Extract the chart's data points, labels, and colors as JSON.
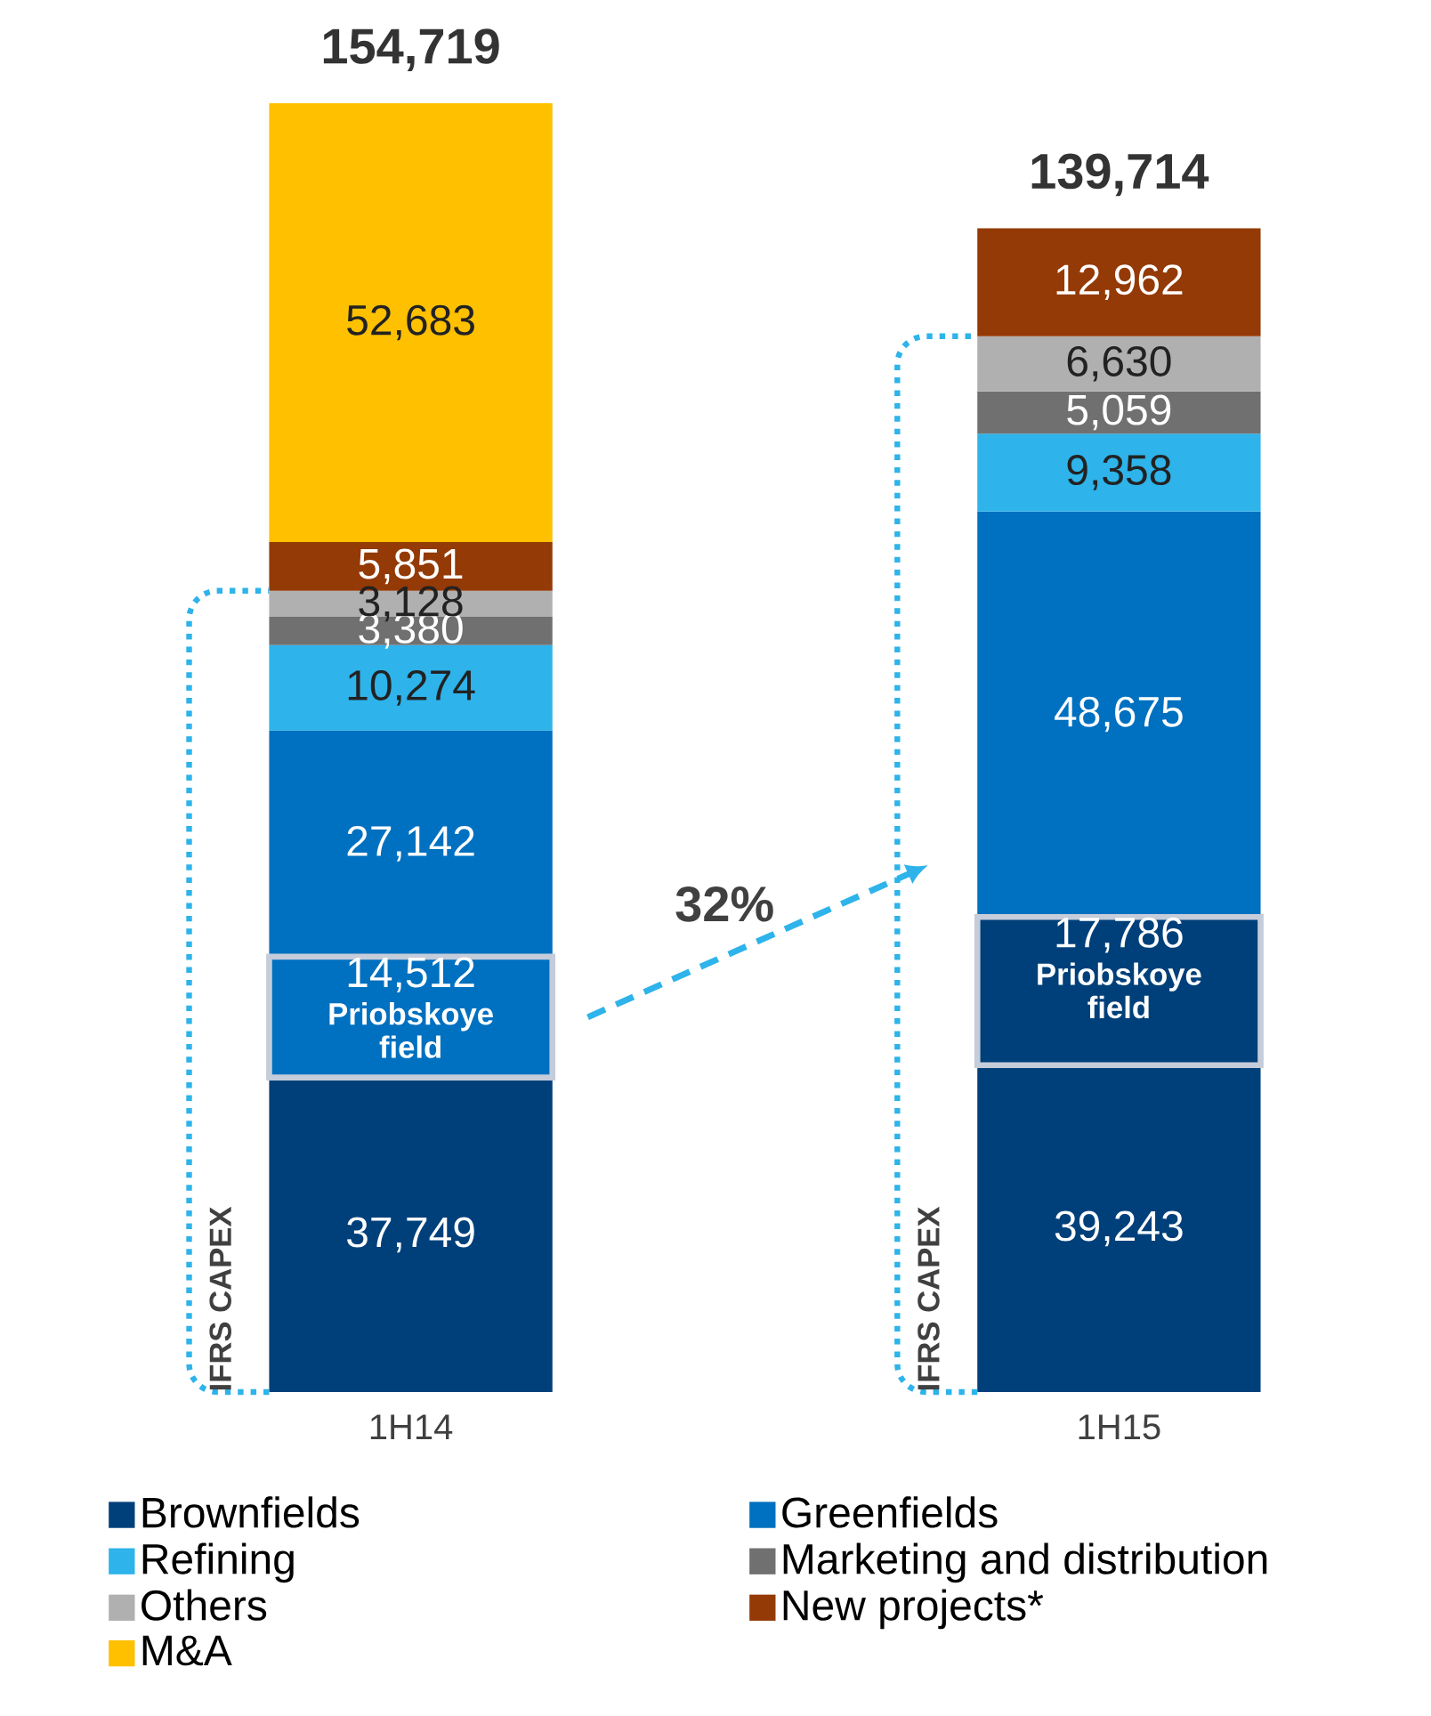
{
  "chart_data": {
    "type": "bar",
    "stacked": true,
    "legend": "bottom",
    "categories": [
      "1H14",
      "1H15"
    ],
    "series": [
      {
        "name": "Brownfields",
        "color": "#00407a",
        "values": [
          37749,
          39243
        ],
        "value_labels": [
          "37,749",
          "39,243"
        ]
      },
      {
        "name": "Priobskoye field",
        "colors": [
          "#0070c0",
          "#00407a"
        ],
        "values": [
          14512,
          17786
        ],
        "value_labels": [
          "14,512",
          "17,786"
        ]
      },
      {
        "name": "Greenfields",
        "color": "#0070c0",
        "values": [
          27142,
          48675
        ],
        "value_labels": [
          "27,142",
          "48,675"
        ]
      },
      {
        "name": "Refining",
        "color": "#2eb3ea",
        "values": [
          10274,
          9358
        ],
        "value_labels": [
          "10,274",
          "9,358"
        ]
      },
      {
        "name": "Marketing and distribution",
        "color": "#707070",
        "values": [
          3380,
          5059
        ],
        "value_labels": [
          "3,380",
          "5,059"
        ]
      },
      {
        "name": "Others",
        "color": "#b0b0b0",
        "values": [
          3128,
          6630
        ],
        "value_labels": [
          "3,128",
          "6,630"
        ]
      },
      {
        "name": "New projects*",
        "color": "#943a06",
        "values": [
          5851,
          12962
        ],
        "value_labels": [
          "5,851",
          "12,962"
        ]
      },
      {
        "name": "M&A",
        "color": "#ffc000",
        "values": [
          52683,
          null
        ],
        "value_labels": [
          "52,683",
          null
        ]
      }
    ],
    "totals": [
      "154,719",
      "139,714"
    ],
    "annotations": [
      "IFRS CAPEX",
      "IFRS CAPEX",
      "32%"
    ]
  }
}
